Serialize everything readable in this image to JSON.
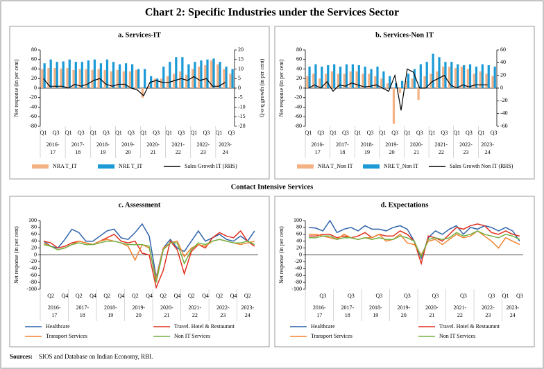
{
  "title": "Chart 2: Specific Industries under the Services Sector",
  "section_heading": "Contact Intensive Services",
  "source_label": "Sources:",
  "source_text": "SIOS and Database on Indian Economy, RBI.",
  "chart_data": [
    {
      "type": "bar",
      "title": "a. Services-IT",
      "y_label": "Net response (in per cent)",
      "y2_label": "Q-o-q growth (in per cent)",
      "categories": [
        "Q1",
        null,
        "Q3",
        null,
        "Q1",
        null,
        "Q3",
        null,
        "Q1",
        null,
        "Q3",
        null,
        "Q1",
        null,
        "Q3",
        null,
        "Q1",
        null,
        "Q3",
        null,
        "Q1",
        null,
        "Q3",
        null,
        "Q1",
        null,
        "Q3",
        null,
        "Q1",
        null,
        "Q3"
      ],
      "groups": [
        "2016-17",
        "2017-18",
        "2018-19",
        "2019-20",
        "2020-21",
        "2021-22",
        "2022-23",
        "2023-24"
      ],
      "ylim": [
        -80,
        80
      ],
      "yticks": [
        -80,
        -60,
        -40,
        -20,
        0,
        20,
        40,
        60,
        80
      ],
      "y2lim": [
        -20,
        20
      ],
      "y2ticks": [
        -20,
        -15,
        -10,
        -5,
        0,
        5,
        10,
        15,
        20
      ],
      "series": [
        {
          "name": "NRA T_IT",
          "color": "#f4b183",
          "values": [
            40,
            42,
            42,
            41,
            42,
            38,
            40,
            40,
            38,
            40,
            38,
            35,
            38,
            35,
            35,
            38,
            -20,
            5,
            20,
            20,
            25,
            30,
            35,
            28,
            40,
            45,
            48,
            58,
            50,
            40,
            30
          ]
        },
        {
          "name": "NRE T_IT",
          "color": "#1b9ad6",
          "values": [
            52,
            60,
            55,
            56,
            60,
            55,
            55,
            58,
            60,
            52,
            60,
            55,
            50,
            52,
            50,
            40,
            40,
            25,
            20,
            45,
            55,
            65,
            65,
            50,
            55,
            58,
            60,
            62,
            55,
            45,
            40
          ]
        },
        {
          "name": "Sales Growth IT (RHS)",
          "type": "line",
          "axis": "y2",
          "color": "#000000",
          "values": [
            5,
            1,
            1,
            1,
            0,
            2,
            1,
            2,
            4,
            5,
            2,
            1,
            2,
            2,
            0,
            -1,
            -4,
            3,
            4,
            3,
            3,
            4,
            5,
            4,
            6,
            4,
            5,
            1,
            1,
            3,
            null
          ]
        }
      ]
    },
    {
      "type": "bar",
      "title": "b. Services-Non IT",
      "y_label": "Net response (in per cent)",
      "categories": [
        "Q1",
        null,
        "Q3",
        null,
        "Q1",
        null,
        "Q3",
        null,
        "Q1",
        null,
        "Q3",
        null,
        "Q1",
        null,
        "Q3",
        null,
        "Q1",
        null,
        "Q3",
        null,
        "Q1",
        null,
        "Q3",
        null,
        "Q1",
        null,
        "Q3",
        null,
        "Q1",
        null,
        "Q3"
      ],
      "groups": [
        "2016-17",
        "2017-18",
        "2018-19",
        "2019-20",
        "2020-21",
        "2021-22",
        "2022-23",
        "2023-24"
      ],
      "ylim": [
        -80,
        80
      ],
      "yticks": [
        -80,
        -60,
        -40,
        -20,
        0,
        20,
        40,
        60,
        80
      ],
      "y2lim": [
        -60,
        60
      ],
      "y2ticks": [
        -60,
        -40,
        -20,
        0,
        20,
        40,
        60
      ],
      "series": [
        {
          "name": "NRA T_Non IT",
          "color": "#f4b183",
          "values": [
            25,
            30,
            20,
            30,
            35,
            30,
            30,
            35,
            35,
            30,
            30,
            25,
            20,
            10,
            -75,
            -10,
            15,
            20,
            -25,
            25,
            30,
            35,
            45,
            45,
            42,
            45,
            40,
            30,
            35,
            30,
            25
          ]
        },
        {
          "name": "NRE T_Non IT",
          "color": "#1b9ad6",
          "values": [
            45,
            50,
            45,
            48,
            50,
            45,
            50,
            50,
            48,
            45,
            40,
            45,
            35,
            25,
            10,
            15,
            30,
            40,
            50,
            55,
            72,
            65,
            55,
            55,
            50,
            48,
            50,
            45,
            50,
            48,
            45
          ]
        },
        {
          "name": "Sales Growth Non IT (RHS)",
          "type": "line",
          "axis": "y2",
          "color": "#000000",
          "values": [
            0,
            5,
            0,
            10,
            -5,
            5,
            3,
            8,
            5,
            2,
            3,
            5,
            0,
            -5,
            20,
            -35,
            30,
            25,
            0,
            0,
            10,
            15,
            20,
            5,
            0,
            5,
            2,
            5,
            5,
            5,
            null
          ]
        }
      ]
    },
    {
      "type": "line",
      "title": "c. Assessment",
      "y_label": "Net response (in per cent)",
      "categories": [
        null,
        "Q2",
        null,
        "Q4",
        null,
        "Q2",
        null,
        "Q4",
        null,
        "Q2",
        null,
        "Q4",
        null,
        "Q2",
        null,
        "Q4",
        null,
        "Q2",
        null,
        "Q4",
        null,
        "Q2",
        null,
        "Q4",
        null,
        "Q2",
        null,
        "Q4",
        null,
        "Q2",
        null
      ],
      "groups": [
        "2016-17",
        "2017-18",
        "2018-19",
        "2019-20",
        "2020-21",
        "2021-22",
        "2022-23",
        "2023-24"
      ],
      "ylim": [
        -100,
        100
      ],
      "yticks": [
        -100,
        -80,
        -60,
        -40,
        -20,
        0,
        20,
        40,
        60,
        80,
        100
      ],
      "series": [
        {
          "name": "Healthcare",
          "color": "#2e62aa",
          "values": [
            40,
            25,
            20,
            45,
            75,
            65,
            40,
            40,
            55,
            70,
            75,
            50,
            45,
            65,
            90,
            55,
            -65,
            20,
            45,
            20,
            10,
            40,
            70,
            40,
            50,
            60,
            45,
            40,
            55,
            40,
            70
          ]
        },
        {
          "name": "Travel. Hotel & Restaurant",
          "color": "#e0301e",
          "values": [
            40,
            35,
            20,
            25,
            35,
            40,
            35,
            30,
            40,
            50,
            60,
            40,
            35,
            40,
            5,
            0,
            -95,
            -45,
            40,
            15,
            -55,
            10,
            30,
            20,
            50,
            65,
            55,
            50,
            70,
            40,
            25
          ]
        },
        {
          "name": "Transport Services",
          "color": "#f0822e",
          "values": [
            35,
            25,
            15,
            20,
            30,
            40,
            35,
            30,
            40,
            45,
            40,
            35,
            25,
            -15,
            30,
            20,
            -70,
            20,
            35,
            40,
            -5,
            20,
            30,
            25,
            40,
            45,
            40,
            35,
            30,
            35,
            40
          ]
        },
        {
          "name": "Non IT Services",
          "color": "#72b043",
          "values": [
            30,
            25,
            15,
            20,
            30,
            35,
            30,
            30,
            35,
            40,
            40,
            35,
            30,
            30,
            30,
            25,
            -80,
            15,
            35,
            35,
            -25,
            15,
            35,
            30,
            40,
            45,
            40,
            35,
            35,
            40,
            30
          ]
        }
      ]
    },
    {
      "type": "line",
      "title": "d. Expectations",
      "y_label": "Net response (in per cent)",
      "categories": [
        null,
        null,
        "Q3",
        null,
        null,
        null,
        "Q3",
        null,
        null,
        null,
        "Q3",
        null,
        null,
        null,
        "Q3",
        null,
        null,
        null,
        "Q3",
        null,
        null,
        null,
        "Q3",
        null,
        null,
        null,
        "Q3",
        null,
        "Q1",
        null,
        "Q3"
      ],
      "groups": [
        "2016-17",
        "2017-18",
        "2018-19",
        "2019-20",
        "2020-21",
        "2021-22",
        "2022-23",
        "2023-24"
      ],
      "ylim": [
        -100,
        100
      ],
      "yticks": [
        -100,
        -80,
        -60,
        -40,
        -20,
        0,
        20,
        40,
        60,
        80,
        100
      ],
      "series": [
        {
          "name": "Healthcare",
          "color": "#2e62aa",
          "values": [
            80,
            78,
            70,
            100,
            65,
            75,
            80,
            70,
            85,
            75,
            75,
            70,
            80,
            85,
            75,
            40,
            -10,
            50,
            70,
            60,
            75,
            85,
            60,
            80,
            75,
            85,
            80,
            70,
            80,
            70,
            40
          ]
        },
        {
          "name": "Travel. Hotel & Restaurant",
          "color": "#e0301e",
          "values": [
            55,
            55,
            60,
            60,
            50,
            55,
            50,
            55,
            65,
            50,
            60,
            55,
            55,
            70,
            60,
            40,
            -25,
            55,
            50,
            40,
            60,
            80,
            75,
            85,
            90,
            85,
            65,
            60,
            70,
            60,
            55
          ]
        },
        {
          "name": "Transport Services",
          "color": "#f0822e",
          "values": [
            60,
            60,
            55,
            50,
            45,
            60,
            50,
            45,
            50,
            50,
            60,
            40,
            45,
            60,
            35,
            30,
            0,
            40,
            45,
            30,
            45,
            60,
            50,
            55,
            70,
            55,
            40,
            20,
            50,
            40,
            30
          ]
        },
        {
          "name": "Non IT Services",
          "color": "#72b043",
          "values": [
            50,
            50,
            55,
            55,
            45,
            50,
            50,
            45,
            50,
            45,
            50,
            45,
            45,
            55,
            50,
            40,
            -5,
            45,
            50,
            45,
            50,
            65,
            55,
            60,
            70,
            60,
            55,
            50,
            60,
            55,
            45
          ]
        }
      ]
    }
  ]
}
